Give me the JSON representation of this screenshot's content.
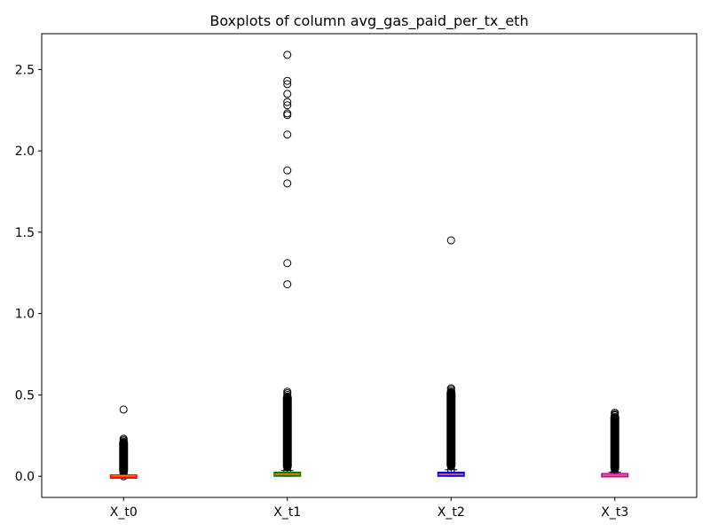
{
  "chart_data": {
    "type": "boxplot",
    "title": "Boxplots of column avg_gas_paid_per_tx_eth",
    "xlabel": "",
    "ylabel": "",
    "ylim": [
      -0.13,
      2.72
    ],
    "yticks": [
      0.0,
      0.5,
      1.0,
      1.5,
      2.0,
      2.5
    ],
    "ytick_labels": [
      "0.0",
      "0.5",
      "1.0",
      "1.5",
      "2.0",
      "2.5"
    ],
    "grid": false,
    "categories": [
      "X_t0",
      "X_t1",
      "X_t2",
      "X_t3"
    ],
    "series": [
      {
        "category": "X_t0",
        "color": "#ff0000",
        "q1": 0.0,
        "median": 0.002,
        "q3": 0.004,
        "whisker_low": 0.0,
        "whisker_high": 0.008,
        "dense_outliers_range": [
          0.008,
          0.23
        ],
        "outliers": [
          0.41,
          0.23,
          0.22,
          0.2,
          0.18,
          0.16,
          0.14,
          0.12,
          0.1,
          0.08,
          0.06,
          0.04,
          0.02,
          0.0
        ]
      },
      {
        "category": "X_t1",
        "color": "#008000",
        "q1": 0.005,
        "median": 0.013,
        "q3": 0.02,
        "whisker_low": 0.0,
        "whisker_high": 0.035,
        "dense_outliers_range": [
          0.035,
          0.51
        ],
        "outliers": [
          2.59,
          2.43,
          2.41,
          2.35,
          2.3,
          2.28,
          2.23,
          2.22,
          2.1,
          1.88,
          1.8,
          1.31,
          1.18,
          0.52,
          0.5,
          0.48,
          0.46
        ]
      },
      {
        "category": "X_t2",
        "color": "#0000ff",
        "q1": 0.005,
        "median": 0.012,
        "q3": 0.02,
        "whisker_low": 0.0,
        "whisker_high": 0.04,
        "dense_outliers_range": [
          0.04,
          0.54
        ],
        "outliers": [
          1.45,
          0.54,
          0.53,
          0.52
        ]
      },
      {
        "category": "X_t3",
        "color": "#bf00bf",
        "q1": 0.002,
        "median": 0.007,
        "q3": 0.012,
        "whisker_low": 0.0,
        "whisker_high": 0.025,
        "dense_outliers_range": [
          0.025,
          0.39
        ],
        "outliers": [
          0.39,
          0.38,
          0.36,
          0.35,
          0.27,
          0.26,
          0.25,
          0.24,
          0.19,
          0.18,
          0.17,
          0.16
        ]
      }
    ]
  }
}
